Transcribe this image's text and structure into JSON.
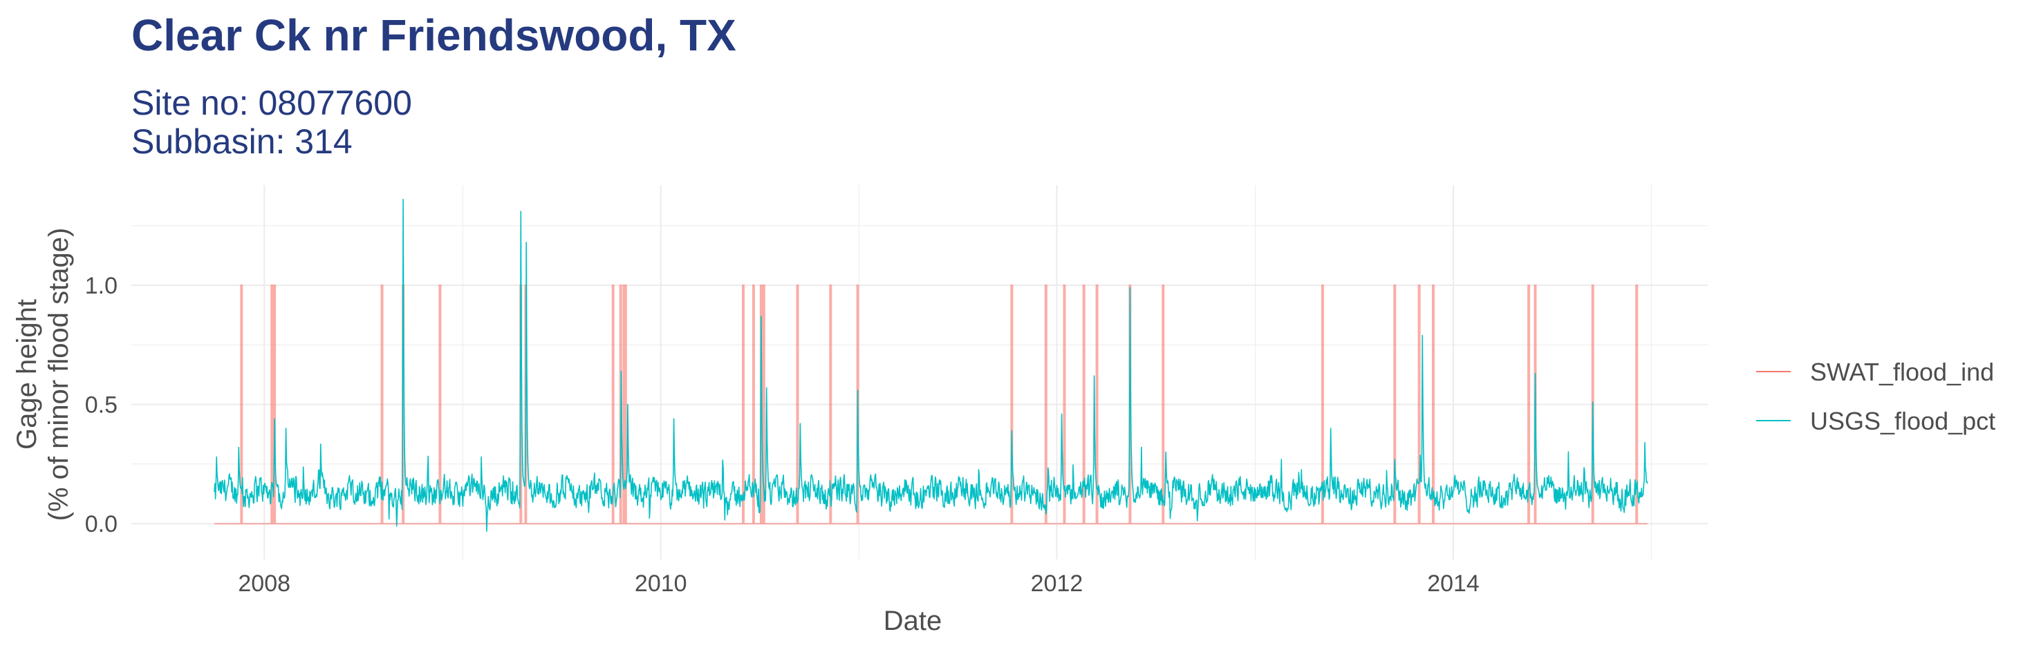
{
  "chart_data": {
    "type": "line",
    "title": "Clear Ck nr Friendswood, TX",
    "subtitle_lines": [
      "Site no: 08077600",
      "Subbasin: 314"
    ],
    "xlabel": "Date",
    "ylabel_lines": [
      "Gage height",
      "(% of minor flood stage)"
    ],
    "x_ticks": [
      "2008",
      "2010",
      "2012",
      "2014"
    ],
    "y_ticks": [
      "0.0",
      "0.5",
      "1.0"
    ],
    "x_range": [
      "2007-05-01",
      "2015-04-15"
    ],
    "ylim": [
      -0.15,
      1.42
    ],
    "grid": true,
    "legend_position": "right",
    "series": [
      {
        "name": "SWAT_flood_ind",
        "color": "#f8766d",
        "baseline": 0,
        "flood_dates": [
          "2007-11-20",
          "2008-01-15",
          "2008-01-20",
          "2008-08-05",
          "2008-09-13",
          "2008-11-20",
          "2009-04-18",
          "2009-04-27",
          "2009-10-05",
          "2009-10-19",
          "2009-10-25",
          "2009-10-28",
          "2010-07-05",
          "2010-07-10",
          "2010-06-02",
          "2010-06-21",
          "2010-09-10",
          "2010-11-10",
          "2010-12-30",
          "2011-10-10",
          "2011-12-12",
          "2012-01-15",
          "2012-02-20",
          "2012-03-15",
          "2012-05-15",
          "2012-07-15",
          "2013-05-05",
          "2013-09-15",
          "2013-10-30",
          "2013-11-25",
          "2014-05-20",
          "2014-06-01",
          "2014-09-15",
          "2014-12-05"
        ]
      },
      {
        "name": "USGS_flood_pct",
        "color": "#00bfc4",
        "start": "2007-10-01",
        "end": "2014-12-25",
        "baseline_level": 0.13,
        "peaks": [
          {
            "date": "2007-10-05",
            "y": 0.28
          },
          {
            "date": "2007-11-15",
            "y": 0.32
          },
          {
            "date": "2008-01-20",
            "y": 0.44
          },
          {
            "date": "2008-02-10",
            "y": 0.4
          },
          {
            "date": "2008-09-13",
            "y": 1.36
          },
          {
            "date": "2009-04-18",
            "y": 1.31
          },
          {
            "date": "2009-04-28",
            "y": 1.18
          },
          {
            "date": "2009-10-20",
            "y": 0.64
          },
          {
            "date": "2009-11-01",
            "y": 0.5
          },
          {
            "date": "2010-01-25",
            "y": 0.44
          },
          {
            "date": "2010-07-05",
            "y": 0.87
          },
          {
            "date": "2010-07-15",
            "y": 0.57
          },
          {
            "date": "2010-09-15",
            "y": 0.42
          },
          {
            "date": "2010-12-30",
            "y": 0.56
          },
          {
            "date": "2011-10-10",
            "y": 0.39
          },
          {
            "date": "2012-01-10",
            "y": 0.46
          },
          {
            "date": "2012-03-10",
            "y": 0.62
          },
          {
            "date": "2012-05-15",
            "y": 0.99
          },
          {
            "date": "2012-07-20",
            "y": 0.3
          },
          {
            "date": "2013-05-20",
            "y": 0.4
          },
          {
            "date": "2013-09-15",
            "y": 0.27
          },
          {
            "date": "2013-11-05",
            "y": 0.79
          },
          {
            "date": "2014-06-01",
            "y": 0.63
          },
          {
            "date": "2014-09-15",
            "y": 0.51
          },
          {
            "date": "2014-12-20",
            "y": 0.34
          }
        ]
      }
    ]
  }
}
